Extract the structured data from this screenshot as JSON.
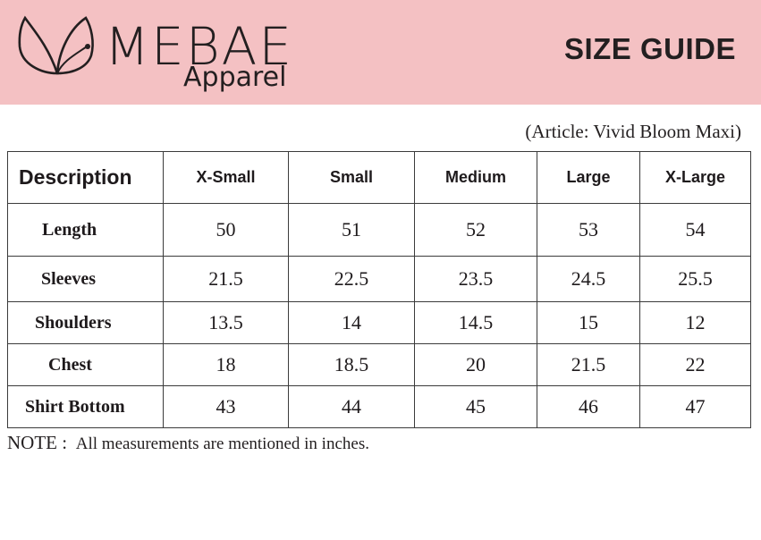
{
  "header": {
    "brand_name": "MEBAE",
    "brand_subtitle": "Apparel",
    "title": "SIZE GUIDE",
    "banner_color": "#f4c1c3"
  },
  "article_label": "(Article: Vivid Bloom Maxi)",
  "table": {
    "header_label": "Description",
    "columns": [
      "X-Small",
      "Small",
      "Medium",
      "Large",
      "X-Large"
    ],
    "rows": [
      {
        "label": "Length",
        "values": [
          "50",
          "51",
          "52",
          "53",
          "54"
        ]
      },
      {
        "label": "Sleeves",
        "values": [
          "21.5",
          "22.5",
          "23.5",
          "24.5",
          "25.5"
        ]
      },
      {
        "label": "Shoulders",
        "values": [
          "13.5",
          "14",
          "14.5",
          "15",
          "12"
        ]
      },
      {
        "label": "Chest",
        "values": [
          "18",
          "18.5",
          "20",
          "21.5",
          "22"
        ]
      },
      {
        "label": "Shirt Bottom",
        "values": [
          "43",
          "44",
          "45",
          "46",
          "47"
        ]
      }
    ]
  },
  "note": {
    "label": "NOTE :",
    "text": "All measurements are mentioned in inches."
  }
}
